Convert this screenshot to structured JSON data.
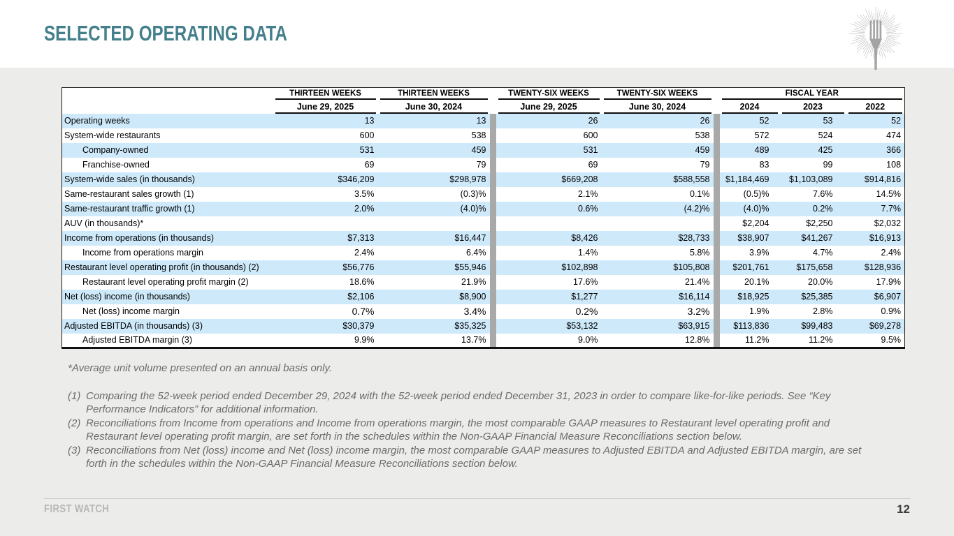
{
  "slide": {
    "title": "SELECTED OPERATING DATA",
    "footer_brand": "FIRST WATCH",
    "page_number": "12"
  },
  "icons": {
    "logo": "fork-sunburst-logo"
  },
  "colors": {
    "accent_teal": "#44808C",
    "row_stripe_blue": "#CEE9FA",
    "slide_background": "#ECECEA",
    "separator_gray": "#a9a9a9",
    "footnote_gray": "#6b6b6b"
  },
  "table": {
    "group_headers": [
      {
        "label": "THIRTEEN WEEKS",
        "sub": "June 29, 2025"
      },
      {
        "label": "THIRTEEN WEEKS",
        "sub": "June 30, 2024"
      },
      {
        "label": "TWENTY-SIX WEEKS",
        "sub": "June 29, 2025"
      },
      {
        "label": "TWENTY-SIX WEEKS",
        "sub": "June 30, 2024"
      },
      {
        "label": "FISCAL YEAR",
        "years": [
          "2024",
          "2023",
          "2022"
        ]
      }
    ],
    "rows": [
      {
        "label": "Operating weeks",
        "indent": false,
        "values": [
          "13",
          "13",
          "26",
          "26",
          "52",
          "53",
          "52"
        ]
      },
      {
        "label": "System-wide restaurants",
        "indent": false,
        "values": [
          "600",
          "538",
          "600",
          "538",
          "572",
          "524",
          "474"
        ]
      },
      {
        "label": "Company-owned",
        "indent": true,
        "values": [
          "531",
          "459",
          "531",
          "459",
          "489",
          "425",
          "366"
        ]
      },
      {
        "label": "Franchise-owned",
        "indent": true,
        "values": [
          "69",
          "79",
          "69",
          "79",
          "83",
          "99",
          "108"
        ]
      },
      {
        "label": "System-wide sales (in thousands)",
        "indent": false,
        "values": [
          "$346,209",
          "$298,978",
          "$669,208",
          "$588,558",
          "$1,184,469",
          "$1,103,089",
          "$914,816"
        ]
      },
      {
        "label": "Same-restaurant sales growth (1)",
        "indent": false,
        "values": [
          "3.5%",
          "(0.3)%",
          "2.1%",
          "0.1%",
          "(0.5)%",
          "7.6%",
          "14.5%"
        ]
      },
      {
        "label": "Same-restaurant traffic growth (1)",
        "indent": false,
        "values": [
          "2.0%",
          "(4.0)%",
          "0.6%",
          "(4.2)%",
          "(4.0)%",
          "0.2%",
          "7.7%"
        ]
      },
      {
        "label": "AUV (in thousands)*",
        "indent": false,
        "values": [
          "",
          "",
          "",
          "",
          "$2,204",
          "$2,250",
          "$2,032"
        ]
      },
      {
        "label": "Income from operations (in thousands)",
        "indent": false,
        "values": [
          "$7,313",
          "$16,447",
          "$8,426",
          "$28,733",
          "$38,907",
          "$41,267",
          "$16,913"
        ]
      },
      {
        "label": "Income from operations margin",
        "indent": true,
        "values": [
          "2.4%",
          "6.4%",
          "1.4%",
          "5.8%",
          "3.9%",
          "4.7%",
          "2.4%"
        ]
      },
      {
        "label": "Restaurant level operating profit (in thousands) (2)",
        "indent": false,
        "values": [
          "$56,776",
          "$55,946",
          "$102,898",
          "$105,808",
          "$201,761",
          "$175,658",
          "$128,936"
        ]
      },
      {
        "label": "Restaurant level operating profit margin (2)",
        "indent": true,
        "values": [
          "18.6%",
          "21.9%",
          "17.6%",
          "21.4%",
          "20.1%",
          "20.0%",
          "17.9%"
        ]
      },
      {
        "label": "Net (loss) income (in thousands)",
        "indent": false,
        "values": [
          "$2,106",
          "$8,900",
          "$1,277",
          "$16,114",
          "$18,925",
          "$25,385",
          "$6,907"
        ]
      },
      {
        "label": "Net (loss) income margin",
        "indent": true,
        "large": true,
        "values": [
          "0.7%",
          "3.4%",
          "0.2%",
          "3.2%",
          "1.9%",
          "2.8%",
          "0.9%"
        ]
      },
      {
        "label": "Adjusted EBITDA (in thousands) (3)",
        "indent": false,
        "values": [
          "$30,379",
          "$35,325",
          "$53,132",
          "$63,915",
          "$113,836",
          "$99,483",
          "$69,278"
        ]
      },
      {
        "label": "Adjusted EBITDA margin (3)",
        "indent": true,
        "values": [
          "9.9%",
          "13.7%",
          "9.0%",
          "12.8%",
          "11.2%",
          "11.2%",
          "9.5%"
        ]
      }
    ]
  },
  "footnotes": {
    "auv_note": "*Average unit volume presented on an annual basis only.",
    "items": [
      {
        "num": "(1)",
        "text": "Comparing the 52-week period ended December 29, 2024 with the 52-week period ended December 31, 2023 in order to compare like-for-like periods.  See “Key Performance Indicators” for additional information."
      },
      {
        "num": "(2)",
        "text": "Reconciliations from Income from operations and Income from operations margin, the most comparable GAAP measures to Restaurant level operating profit and Restaurant level operating profit margin, are set forth in the schedules within the Non-GAAP Financial Measure Reconciliations section below."
      },
      {
        "num": "(3)",
        "text": "Reconciliations from Net (loss) income and Net (loss) income margin, the most comparable GAAP measures to Adjusted EBITDA and Adjusted EBITDA margin, are set forth in the schedules within the Non-GAAP Financial Measure Reconciliations section below."
      }
    ]
  }
}
